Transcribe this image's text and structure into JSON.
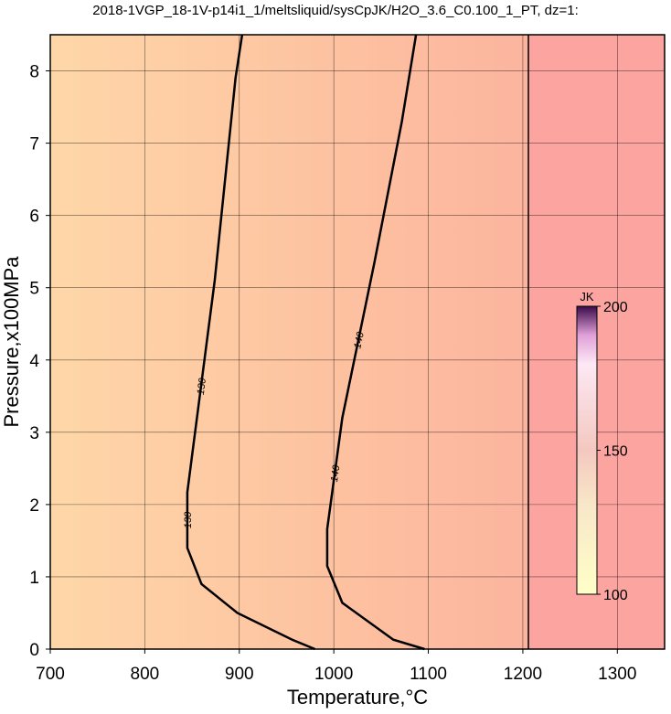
{
  "chart_data": {
    "type": "contour",
    "title": "2018-1VGP_18-1V-p14i1_1/meltsliquid/sysCpJK/H2O_3.6_C0.100_1_PT, dz=1:",
    "x_label": "Temperature,°C",
    "y_label": "Pressure,x100MPa",
    "xlim": [
      700,
      1350
    ],
    "ylim": [
      0,
      8.5
    ],
    "xticks": [
      700,
      800,
      900,
      1000,
      1100,
      1200,
      1300
    ],
    "yticks": [
      0,
      1,
      2,
      3,
      4,
      5,
      6,
      7,
      8
    ],
    "grid": true,
    "contours": [
      {
        "level": 130,
        "x": [
          903,
          896,
          874,
          845,
          845,
          860,
          898,
          956,
          980
        ],
        "y": [
          8.5,
          7.9,
          5.1,
          2.17,
          1.4,
          0.9,
          0.5,
          0.13,
          0
        ]
      },
      {
        "level": 140,
        "x": [
          1087,
          1072,
          1043,
          1009,
          993,
          993,
          1009,
          1063,
          1096
        ],
        "y": [
          8.5,
          7.3,
          5.35,
          3.2,
          1.66,
          1.15,
          0.64,
          0.13,
          0
        ]
      }
    ],
    "colorbar": {
      "label": "JK",
      "lim": [
        100,
        200
      ],
      "ticks": [
        100,
        150,
        200
      ]
    }
  }
}
